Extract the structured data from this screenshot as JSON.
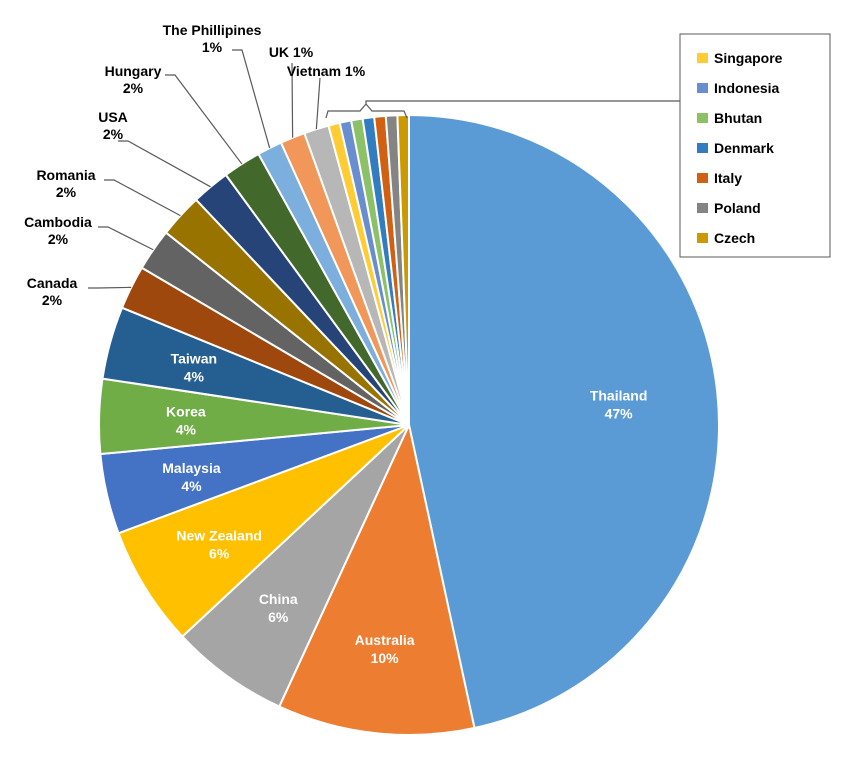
{
  "chart_data": {
    "type": "pie",
    "title": "",
    "legend_position": "top-right",
    "start_angle_deg": 0,
    "direction": "clockwise",
    "slices": [
      {
        "name": "Thailand",
        "value": 46.8,
        "label": "47%",
        "color": "#5B9BD5",
        "label_mode": "inside"
      },
      {
        "name": "Australia",
        "value": 10.3,
        "label": "10%",
        "color": "#ED7D31",
        "label_mode": "inside"
      },
      {
        "name": "China",
        "value": 6.2,
        "label": "6%",
        "color": "#A5A5A5",
        "label_mode": "inside"
      },
      {
        "name": "New Zealand",
        "value": 6.3,
        "label": "6%",
        "color": "#FFC000",
        "label_mode": "inside"
      },
      {
        "name": "Malaysia",
        "value": 4.2,
        "label": "4%",
        "color": "#4472C4",
        "label_mode": "inside"
      },
      {
        "name": "Korea",
        "value": 3.9,
        "label": "4%",
        "color": "#70AD47",
        "label_mode": "inside"
      },
      {
        "name": "Taiwan",
        "value": 3.8,
        "label": "4%",
        "color": "#255E91",
        "label_mode": "inside"
      },
      {
        "name": "Canada",
        "value": 2.3,
        "label": "2%",
        "color": "#9E480E",
        "label_mode": "outside"
      },
      {
        "name": "Cambodia",
        "value": 2.2,
        "label": "2%",
        "color": "#636363",
        "label_mode": "outside"
      },
      {
        "name": "Romania",
        "value": 2.3,
        "label": "2%",
        "color": "#997300",
        "label_mode": "outside"
      },
      {
        "name": "USA",
        "value": 2.0,
        "label": "2%",
        "color": "#264478",
        "label_mode": "outside"
      },
      {
        "name": "Hungary",
        "value": 2.0,
        "label": "2%",
        "color": "#43682B",
        "label_mode": "outside"
      },
      {
        "name": "The Phillipines",
        "value": 1.3,
        "label": "1%",
        "color": "#7CAFDD",
        "label_mode": "outside"
      },
      {
        "name": "UK",
        "value": 1.3,
        "label": "1%",
        "color": "#F1975A",
        "label_mode": "outside-inline"
      },
      {
        "name": "Vietnam",
        "value": 1.3,
        "label": "1%",
        "color": "#B7B7B7",
        "label_mode": "outside-inline"
      },
      {
        "name": "Singapore",
        "value": 0.6,
        "color": "#FFCD33",
        "label_mode": "legend"
      },
      {
        "name": "Indonesia",
        "value": 0.6,
        "color": "#698ED0",
        "label_mode": "legend"
      },
      {
        "name": "Bhutan",
        "value": 0.6,
        "color": "#8CC168",
        "label_mode": "legend"
      },
      {
        "name": "Denmark",
        "value": 0.6,
        "color": "#327DC2",
        "label_mode": "legend"
      },
      {
        "name": "Italy",
        "value": 0.6,
        "color": "#D26012",
        "label_mode": "legend"
      },
      {
        "name": "Poland",
        "value": 0.6,
        "color": "#848484",
        "label_mode": "legend"
      },
      {
        "name": "Czech",
        "value": 0.6,
        "color": "#CC9A00",
        "label_mode": "legend"
      }
    ],
    "legend": [
      "Singapore",
      "Indonesia",
      "Bhutan",
      "Denmark",
      "Italy",
      "Poland",
      "Czech"
    ]
  }
}
